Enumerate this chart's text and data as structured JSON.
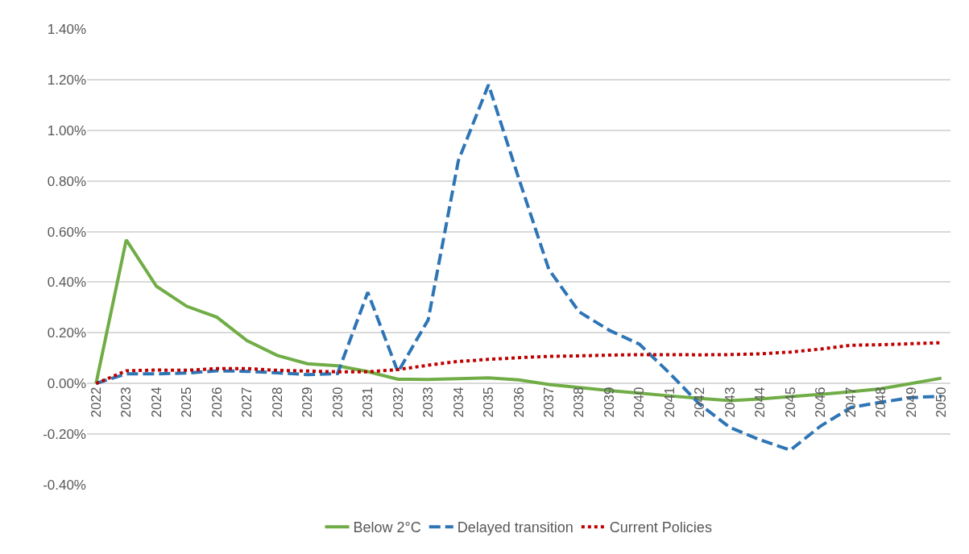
{
  "chart_data": {
    "type": "line",
    "categories": [
      "2022",
      "2023",
      "2024",
      "2025",
      "2026",
      "2027",
      "2028",
      "2029",
      "2030",
      "2031",
      "2032",
      "2033",
      "2034",
      "2035",
      "2036",
      "2037",
      "2038",
      "2039",
      "2040",
      "2041",
      "2042",
      "2043",
      "2044",
      "2045",
      "2046",
      "2047",
      "2048",
      "2049",
      "2050"
    ],
    "series": [
      {
        "name": "Below 2°C",
        "color": "#70ad47",
        "line_style": "solid",
        "values": [
          0,
          0.567,
          0.384,
          0.305,
          0.262,
          0.169,
          0.111,
          0.078,
          0.07,
          0.047,
          0.017,
          0.016,
          0.019,
          0.022,
          0.014,
          -0.004,
          -0.016,
          -0.028,
          -0.038,
          -0.049,
          -0.059,
          -0.068,
          -0.061,
          -0.052,
          -0.043,
          -0.033,
          -0.021,
          0,
          0.021
        ]
      },
      {
        "name": "Delayed transition",
        "color": "#2e75b6",
        "line_style": "dashed",
        "values": [
          0,
          0.038,
          0.038,
          0.041,
          0.05,
          0.048,
          0.042,
          0.035,
          0.039,
          0.36,
          0.045,
          0.251,
          0.88,
          1.18,
          0.81,
          0.45,
          0.283,
          0.21,
          0.155,
          0.04,
          -0.083,
          -0.174,
          -0.223,
          -0.263,
          -0.168,
          -0.095,
          -0.074,
          -0.056,
          -0.05
        ]
      },
      {
        "name": "Current Policies",
        "color": "#c00000",
        "line_style": "dotted",
        "values": [
          0,
          0.05,
          0.053,
          0.052,
          0.059,
          0.059,
          0.052,
          0.049,
          0.046,
          0.046,
          0.055,
          0.072,
          0.087,
          0.095,
          0.102,
          0.107,
          0.109,
          0.112,
          0.114,
          0.114,
          0.113,
          0.114,
          0.117,
          0.124,
          0.136,
          0.151,
          0.153,
          0.157,
          0.161
        ]
      }
    ],
    "ylim": [
      -0.4,
      1.4
    ],
    "yticks": [
      {
        "value": -0.4,
        "label": "-0.40%"
      },
      {
        "value": -0.2,
        "label": "-0.20%"
      },
      {
        "value": 0,
        "label": "0.00%"
      },
      {
        "value": 0.2,
        "label": "0.20%"
      },
      {
        "value": 0.4,
        "label": "0.40%"
      },
      {
        "value": 0.6,
        "label": "0.60%"
      },
      {
        "value": 0.8,
        "label": "0.80%"
      },
      {
        "value": 1.0,
        "label": "1.00%"
      },
      {
        "value": 1.2,
        "label": "1.20%"
      },
      {
        "value": 1.4,
        "label": "1.40%"
      }
    ],
    "grid": "y",
    "legend": "bottom",
    "marker": "none"
  }
}
